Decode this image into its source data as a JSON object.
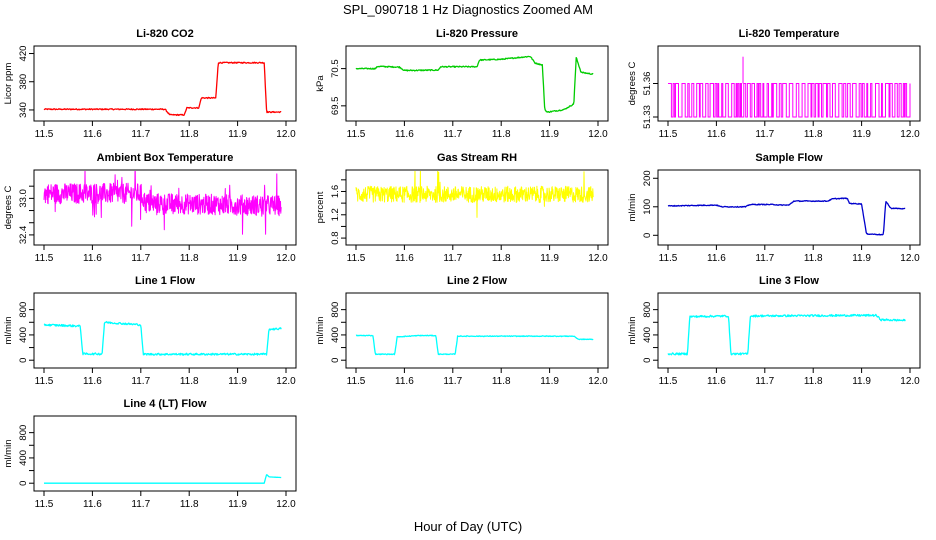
{
  "figure": {
    "title": "SPL_090718  1 Hz Diagnostics Zoomed AM",
    "xlabel": "Hour of Day (UTC)"
  },
  "chart_data": [
    {
      "type": "line",
      "title": "Li-820 CO2",
      "ylabel": "Licor ppm",
      "color": "#ff0000",
      "xlim": [
        11.5,
        12.0
      ],
      "ylim": [
        330,
        425
      ],
      "xticks": [
        "11.5",
        "11.6",
        "11.7",
        "11.8",
        "11.9",
        "12.0"
      ],
      "yticks": [
        {
          "v": 340,
          "label": "340"
        },
        {
          "v": 380,
          "label": "380"
        },
        {
          "v": 420,
          "label": "420"
        }
      ],
      "noise": 0.8,
      "series": [
        [
          11.5,
          341
        ],
        [
          11.75,
          341
        ],
        [
          11.76,
          333
        ],
        [
          11.79,
          333
        ],
        [
          11.795,
          343
        ],
        [
          11.82,
          343
        ],
        [
          11.825,
          357
        ],
        [
          11.855,
          357
        ],
        [
          11.86,
          407
        ],
        [
          11.955,
          407
        ],
        [
          11.96,
          337
        ],
        [
          11.99,
          337
        ]
      ]
    },
    {
      "type": "line",
      "title": "Li-820 Pressure",
      "ylabel": "kPa",
      "color": "#00cc00",
      "xlim": [
        11.5,
        12.0
      ],
      "ylim": [
        69.2,
        71.0
      ],
      "xticks": [
        "11.5",
        "11.6",
        "11.7",
        "11.8",
        "11.9",
        "12.0"
      ],
      "yticks": [
        {
          "v": 69.5,
          "label": "69.5"
        },
        {
          "v": 70.5,
          "label": "70.5"
        }
      ],
      "noise": 0.015,
      "series": [
        [
          11.5,
          70.5
        ],
        [
          11.54,
          70.5
        ],
        [
          11.545,
          70.56
        ],
        [
          11.59,
          70.54
        ],
        [
          11.6,
          70.45
        ],
        [
          11.67,
          70.46
        ],
        [
          11.675,
          70.55
        ],
        [
          11.75,
          70.55
        ],
        [
          11.755,
          70.73
        ],
        [
          11.8,
          70.75
        ],
        [
          11.86,
          70.83
        ],
        [
          11.87,
          70.65
        ],
        [
          11.885,
          70.6
        ],
        [
          11.89,
          69.4
        ],
        [
          11.895,
          69.33
        ],
        [
          11.93,
          69.4
        ],
        [
          11.95,
          69.55
        ],
        [
          11.955,
          70.8
        ],
        [
          11.965,
          70.4
        ],
        [
          11.99,
          70.35
        ]
      ]
    },
    {
      "type": "line",
      "title": "Li-820 Temperature",
      "ylabel": "degrees C",
      "color": "#ff00ff",
      "xlim": [
        11.5,
        12.0
      ],
      "ylim": [
        51.33,
        51.39
      ],
      "xticks": [
        "11.5",
        "11.6",
        "11.7",
        "11.8",
        "11.9",
        "12.0"
      ],
      "yticks": [
        {
          "v": 51.33,
          "label": "51.33"
        },
        {
          "v": 51.36,
          "label": "51.36"
        }
      ],
      "pattern": "binary",
      "levels": [
        51.33,
        51.36
      ],
      "spike": {
        "x": 11.655,
        "y": 51.384
      }
    },
    {
      "type": "line",
      "title": "Ambient Box Temperature",
      "ylabel": "degrees C",
      "color": "#ff00ff",
      "xlim": [
        11.5,
        12.0
      ],
      "ylim": [
        32.3,
        33.4
      ],
      "xticks": [
        "11.5",
        "11.6",
        "11.7",
        "11.8",
        "11.9",
        "12.0"
      ],
      "yticks": [
        {
          "v": 32.4,
          "label": "32.4"
        },
        {
          "v": 32.6,
          "label": ""
        },
        {
          "v": 32.8,
          "label": ""
        },
        {
          "v": 33.0,
          "label": "33.0"
        },
        {
          "v": 33.2,
          "label": ""
        }
      ],
      "pattern": "noisy",
      "noise": 0.17,
      "series": [
        [
          11.5,
          33.08
        ],
        [
          11.7,
          33.08
        ],
        [
          11.71,
          32.92
        ],
        [
          11.99,
          32.88
        ]
      ]
    },
    {
      "type": "line",
      "title": "Gas Stream RH",
      "ylabel": "percent",
      "color": "#ffff00",
      "xlim": [
        11.5,
        12.0
      ],
      "ylim": [
        0.75,
        1.9
      ],
      "xticks": [
        "11.5",
        "11.6",
        "11.7",
        "11.8",
        "11.9",
        "12.0"
      ],
      "yticks": [
        {
          "v": 0.8,
          "label": "0.8"
        },
        {
          "v": 1.0,
          "label": ""
        },
        {
          "v": 1.2,
          "label": "1.2"
        },
        {
          "v": 1.4,
          "label": ""
        },
        {
          "v": 1.6,
          "label": "1.6"
        },
        {
          "v": 1.8,
          "label": ""
        }
      ],
      "pattern": "noisy",
      "noise": 0.14,
      "series": [
        [
          11.5,
          1.55
        ],
        [
          11.99,
          1.55
        ]
      ]
    },
    {
      "type": "line",
      "title": "Sample Flow",
      "ylabel": "ml/min",
      "color": "#0000cc",
      "xlim": [
        11.5,
        12.0
      ],
      "ylim": [
        -20,
        215
      ],
      "xticks": [
        "11.5",
        "11.6",
        "11.7",
        "11.8",
        "11.9",
        "12.0"
      ],
      "yticks": [
        {
          "v": 0,
          "label": "0"
        },
        {
          "v": 100,
          "label": "100"
        },
        {
          "v": 200,
          "label": "200"
        }
      ],
      "noise": 1.5,
      "series": [
        [
          11.5,
          103
        ],
        [
          11.6,
          106
        ],
        [
          11.61,
          100
        ],
        [
          11.66,
          100
        ],
        [
          11.67,
          108
        ],
        [
          11.72,
          108
        ],
        [
          11.73,
          106
        ],
        [
          11.75,
          106
        ],
        [
          11.76,
          120
        ],
        [
          11.83,
          120
        ],
        [
          11.84,
          128
        ],
        [
          11.87,
          130
        ],
        [
          11.875,
          112
        ],
        [
          11.9,
          110
        ],
        [
          11.91,
          5
        ],
        [
          11.945,
          2
        ],
        [
          11.95,
          120
        ],
        [
          11.96,
          95
        ],
        [
          11.99,
          93
        ]
      ]
    },
    {
      "type": "line",
      "title": "Line 1 Flow",
      "ylabel": "ml/min",
      "color": "#00ffff",
      "xlim": [
        11.5,
        12.0
      ],
      "ylim": [
        -60,
        1000
      ],
      "xticks": [
        "11.5",
        "11.6",
        "11.7",
        "11.8",
        "11.9",
        "12.0"
      ],
      "yticks": [
        {
          "v": 0,
          "label": "0"
        },
        {
          "v": 200,
          "label": ""
        },
        {
          "v": 400,
          "label": "400"
        },
        {
          "v": 600,
          "label": ""
        },
        {
          "v": 800,
          "label": "800"
        }
      ],
      "noise": 15,
      "series": [
        [
          11.5,
          560
        ],
        [
          11.575,
          540
        ],
        [
          11.58,
          100
        ],
        [
          11.62,
          100
        ],
        [
          11.625,
          600
        ],
        [
          11.7,
          560
        ],
        [
          11.705,
          95
        ],
        [
          11.96,
          95
        ],
        [
          11.965,
          490
        ],
        [
          11.99,
          500
        ]
      ]
    },
    {
      "type": "line",
      "title": "Line 2 Flow",
      "ylabel": "ml/min",
      "color": "#00ffff",
      "xlim": [
        11.5,
        12.0
      ],
      "ylim": [
        -60,
        1000
      ],
      "xticks": [
        "11.5",
        "11.6",
        "11.7",
        "11.8",
        "11.9",
        "12.0"
      ],
      "yticks": [
        {
          "v": 0,
          "label": "0"
        },
        {
          "v": 200,
          "label": ""
        },
        {
          "v": 400,
          "label": "400"
        },
        {
          "v": 600,
          "label": ""
        },
        {
          "v": 800,
          "label": "800"
        }
      ],
      "noise": 6,
      "series": [
        [
          11.5,
          390
        ],
        [
          11.535,
          390
        ],
        [
          11.54,
          95
        ],
        [
          11.58,
          95
        ],
        [
          11.585,
          370
        ],
        [
          11.63,
          390
        ],
        [
          11.665,
          390
        ],
        [
          11.67,
          95
        ],
        [
          11.705,
          95
        ],
        [
          11.71,
          380
        ],
        [
          11.95,
          380
        ],
        [
          11.96,
          330
        ],
        [
          11.99,
          330
        ]
      ]
    },
    {
      "type": "line",
      "title": "Line 3 Flow",
      "ylabel": "ml/min",
      "color": "#00ffff",
      "xlim": [
        11.5,
        12.0
      ],
      "ylim": [
        -60,
        1000
      ],
      "xticks": [
        "11.5",
        "11.6",
        "11.7",
        "11.8",
        "11.9",
        "12.0"
      ],
      "yticks": [
        {
          "v": 0,
          "label": "0"
        },
        {
          "v": 200,
          "label": ""
        },
        {
          "v": 400,
          "label": "400"
        },
        {
          "v": 600,
          "label": ""
        },
        {
          "v": 800,
          "label": "800"
        }
      ],
      "noise": 15,
      "series": [
        [
          11.5,
          100
        ],
        [
          11.54,
          100
        ],
        [
          11.545,
          690
        ],
        [
          11.625,
          700
        ],
        [
          11.63,
          100
        ],
        [
          11.665,
          100
        ],
        [
          11.67,
          700
        ],
        [
          11.93,
          710
        ],
        [
          11.94,
          640
        ],
        [
          11.99,
          630
        ]
      ]
    },
    {
      "type": "line",
      "title": "Line 4 (LT) Flow",
      "ylabel": "ml/min",
      "color": "#00ffff",
      "xlim": [
        11.5,
        12.0
      ],
      "ylim": [
        -60,
        1000
      ],
      "xticks": [
        "11.5",
        "11.6",
        "11.7",
        "11.8",
        "11.9",
        "12.0"
      ],
      "yticks": [
        {
          "v": 0,
          "label": "0"
        },
        {
          "v": 200,
          "label": ""
        },
        {
          "v": 400,
          "label": "400"
        },
        {
          "v": 600,
          "label": ""
        },
        {
          "v": 800,
          "label": "800"
        }
      ],
      "noise": 0,
      "series": [
        [
          11.5,
          0
        ],
        [
          11.955,
          0
        ],
        [
          11.96,
          140
        ],
        [
          11.965,
          100
        ],
        [
          11.99,
          90
        ]
      ]
    }
  ]
}
